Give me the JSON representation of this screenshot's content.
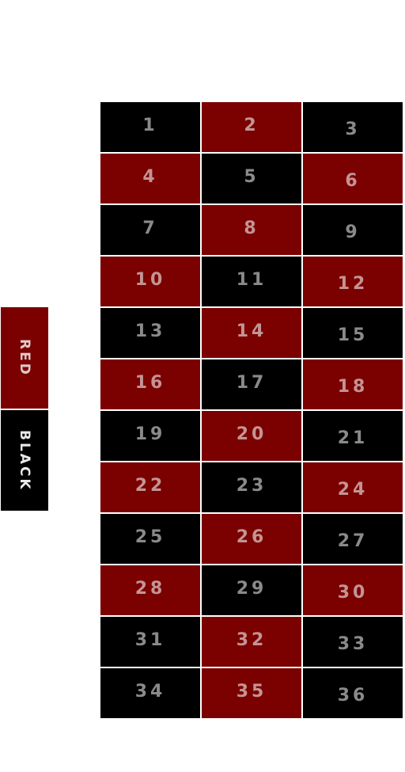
{
  "board": {
    "colors": {
      "red": "#7b0000",
      "black": "#000000"
    },
    "cells": [
      {
        "n": "1",
        "color": "black"
      },
      {
        "n": "2",
        "color": "red"
      },
      {
        "n": "3",
        "color": "black"
      },
      {
        "n": "4",
        "color": "red"
      },
      {
        "n": "5",
        "color": "black"
      },
      {
        "n": "6",
        "color": "red"
      },
      {
        "n": "7",
        "color": "black"
      },
      {
        "n": "8",
        "color": "red"
      },
      {
        "n": "9",
        "color": "black"
      },
      {
        "n": "10",
        "color": "red"
      },
      {
        "n": "11",
        "color": "black"
      },
      {
        "n": "12",
        "color": "red"
      },
      {
        "n": "13",
        "color": "black"
      },
      {
        "n": "14",
        "color": "red"
      },
      {
        "n": "15",
        "color": "black"
      },
      {
        "n": "16",
        "color": "red"
      },
      {
        "n": "17",
        "color": "black"
      },
      {
        "n": "18",
        "color": "red"
      },
      {
        "n": "19",
        "color": "black"
      },
      {
        "n": "20",
        "color": "red"
      },
      {
        "n": "21",
        "color": "black"
      },
      {
        "n": "22",
        "color": "red"
      },
      {
        "n": "23",
        "color": "black"
      },
      {
        "n": "24",
        "color": "red"
      },
      {
        "n": "25",
        "color": "black"
      },
      {
        "n": "26",
        "color": "red"
      },
      {
        "n": "27",
        "color": "black"
      },
      {
        "n": "28",
        "color": "red"
      },
      {
        "n": "29",
        "color": "black"
      },
      {
        "n": "30",
        "color": "red"
      },
      {
        "n": "31",
        "color": "black"
      },
      {
        "n": "32",
        "color": "red"
      },
      {
        "n": "33",
        "color": "black"
      },
      {
        "n": "34",
        "color": "black"
      },
      {
        "n": "35",
        "color": "red"
      },
      {
        "n": "36",
        "color": "black"
      }
    ]
  },
  "side_bets": {
    "red_label": "RED",
    "black_label": "BLACK"
  }
}
